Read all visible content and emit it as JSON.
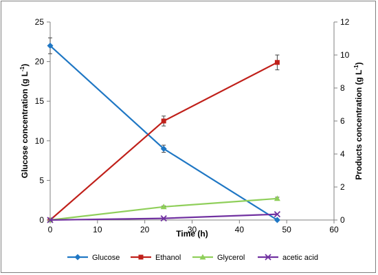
{
  "chart_data": {
    "type": "line",
    "xlabel": "Time (h)",
    "ylabel_left": "Glucose concentration (g L",
    "ylabel_left_sup": "-1",
    "ylabel_left_end": ")",
    "ylabel_right": "Products concentration (g L",
    "ylabel_right_sup": "-1",
    "ylabel_right_end": ")",
    "xlim": [
      0,
      60
    ],
    "x_ticks": [
      0,
      10,
      20,
      30,
      40,
      50,
      60
    ],
    "ylim_left": [
      0,
      25
    ],
    "y_left_ticks": [
      0,
      5,
      10,
      15,
      20,
      25
    ],
    "ylim_right": [
      0,
      12
    ],
    "y_right_ticks": [
      0,
      2,
      4,
      6,
      8,
      10,
      12
    ],
    "grid": false,
    "legend_position": "bottom",
    "series": [
      {
        "name": "Glucose",
        "axis": "left",
        "color": "#1f77c4",
        "marker": "diamond",
        "x": [
          0,
          24,
          48
        ],
        "y": [
          22.0,
          9.0,
          0.0
        ],
        "err": [
          1.0,
          0.45,
          0.0
        ]
      },
      {
        "name": "Ethanol",
        "axis": "right",
        "color": "#c0201a",
        "marker": "square",
        "x": [
          0,
          24,
          48
        ],
        "y": [
          0.0,
          6.0,
          9.55
        ],
        "err": [
          0.0,
          0.3,
          0.45
        ]
      },
      {
        "name": "Glycerol",
        "axis": "right",
        "color": "#8fcf5a",
        "marker": "triangle",
        "x": [
          0,
          24,
          48
        ],
        "y": [
          0.0,
          0.8,
          1.3
        ],
        "err": [
          0.0,
          0.05,
          0.08
        ]
      },
      {
        "name": "acetic acid",
        "axis": "right",
        "color": "#7030a0",
        "marker": "x",
        "x": [
          0,
          24,
          48
        ],
        "y": [
          0.0,
          0.1,
          0.35
        ],
        "err": [
          0.0,
          0.0,
          0.0
        ]
      }
    ]
  }
}
